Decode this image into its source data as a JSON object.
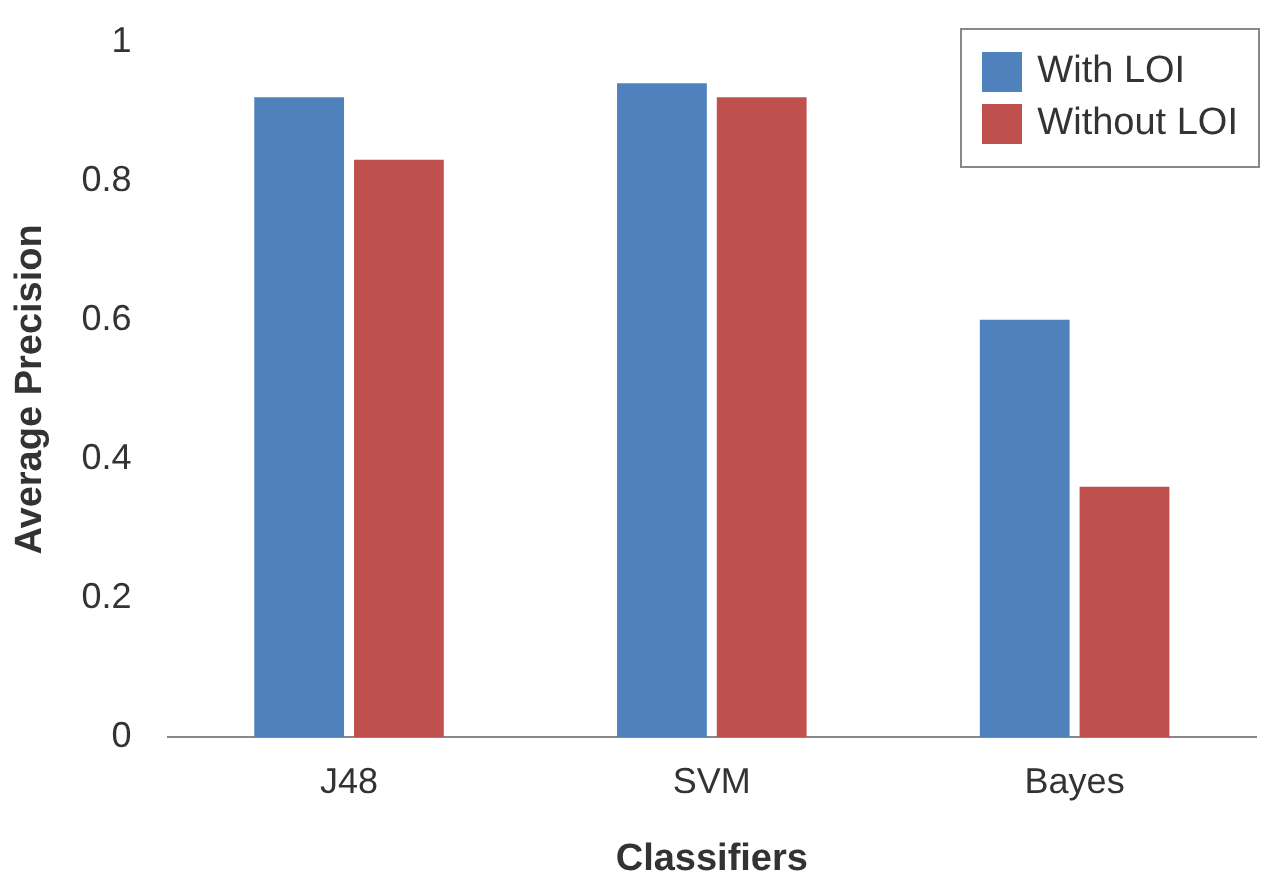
{
  "chart_data": {
    "type": "bar",
    "xlabel": "Classifiers",
    "ylabel": "Average Precision",
    "categories": [
      "J48",
      "SVM",
      "Bayes"
    ],
    "series": [
      {
        "name": "With LOI",
        "color": "#4f81bd",
        "values": [
          0.92,
          0.94,
          0.6
        ]
      },
      {
        "name": "Without LOI",
        "color": "#c0504d",
        "values": [
          0.83,
          0.92,
          0.36
        ]
      }
    ],
    "ylim": [
      0,
      1
    ],
    "yticks": [
      0,
      0.2,
      0.4,
      0.6,
      0.8,
      1
    ],
    "grid": false,
    "legend": "top right"
  }
}
